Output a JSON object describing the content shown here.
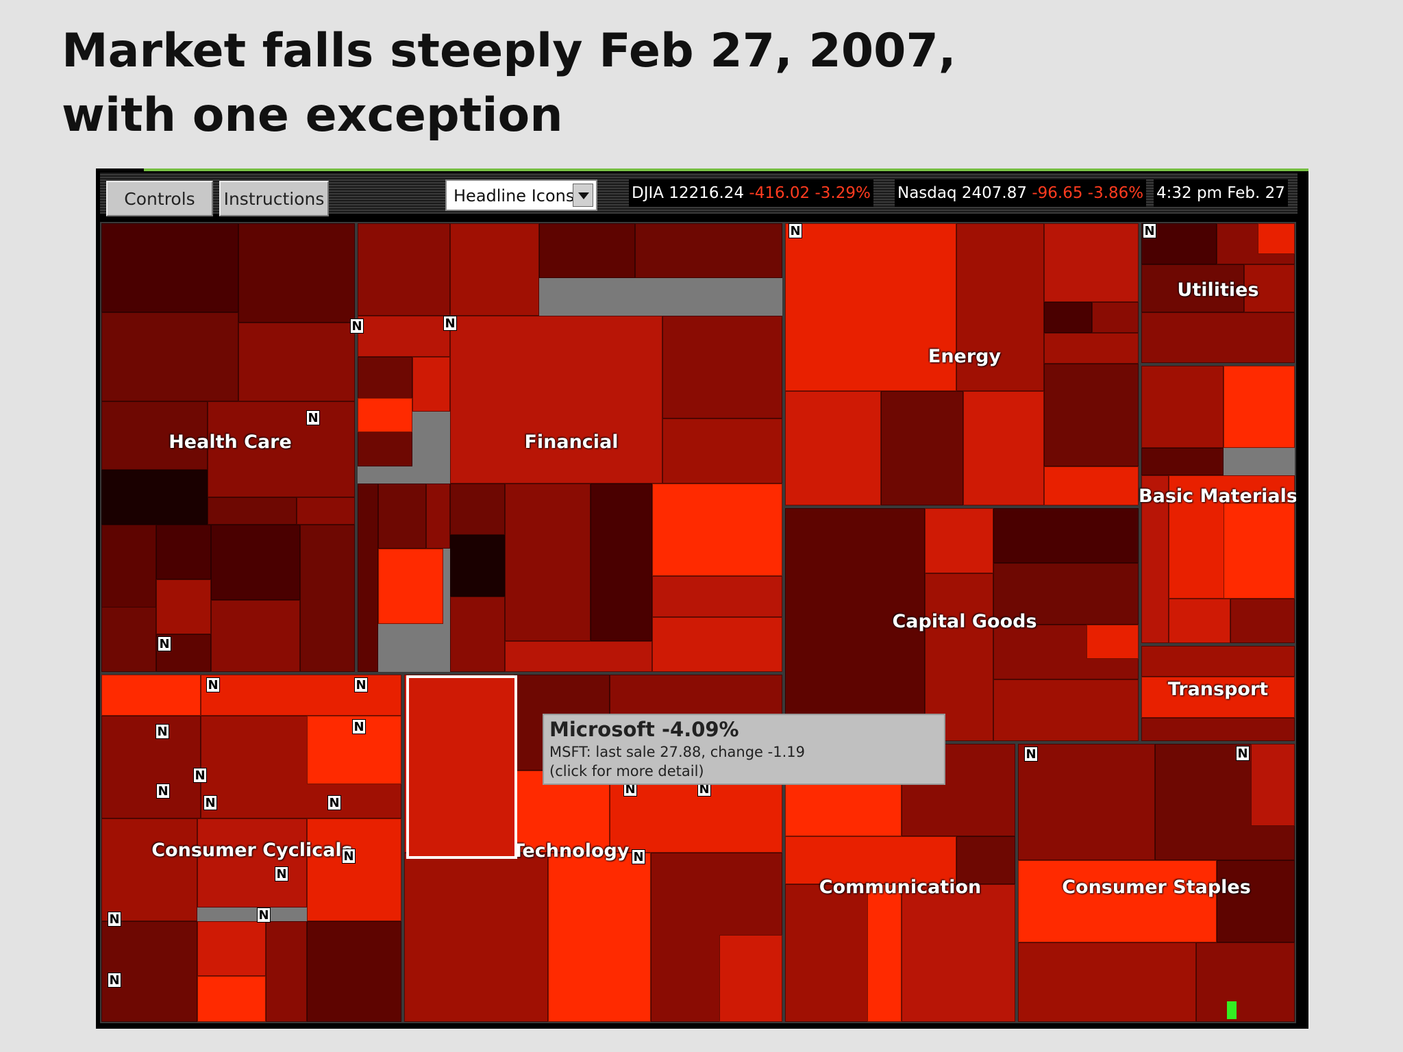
{
  "slide": {
    "title_line1": "Market falls steeply Feb 27, 2007,",
    "title_line2": "with one exception"
  },
  "toolbar": {
    "controls_label": "Controls",
    "instructions_label": "Instructions",
    "view_select": {
      "value": "Headline Icons"
    }
  },
  "ticker": {
    "djia": {
      "name": "DJIA",
      "value": "12216.24",
      "change": "-416.02",
      "pct": "-3.29%"
    },
    "nasdaq": {
      "name": "Nasdaq",
      "value": "2407.87",
      "change": "-96.65",
      "pct": "-3.86%"
    },
    "time": "4:32 pm",
    "date": "Feb. 27"
  },
  "news_icon_label": "N",
  "sectors": {
    "health_care": "Health Care",
    "financial": "Financial",
    "energy": "Energy",
    "utilities": "Utilities",
    "basic_materials": "Basic Materials",
    "capital_goods": "Capital Goods",
    "transport": "Transport",
    "consumer_cyclicals": "Consumer Cyclicals",
    "technology": "Technology",
    "communication": "Communication",
    "consumer_staples": "Consumer Staples"
  },
  "tooltip": {
    "title": "Microsoft -4.09%",
    "line1": "MSFT: last sale 27.88,  change -1.19",
    "line2": "(click for more detail)"
  },
  "colors": {
    "deep_red": "#4a0000",
    "dark_red": "#7a0a02",
    "mid_red": "#a81204",
    "bright_red": "#e82000",
    "brightest_red": "#ff2a00",
    "up_green": "#33ee22"
  }
}
